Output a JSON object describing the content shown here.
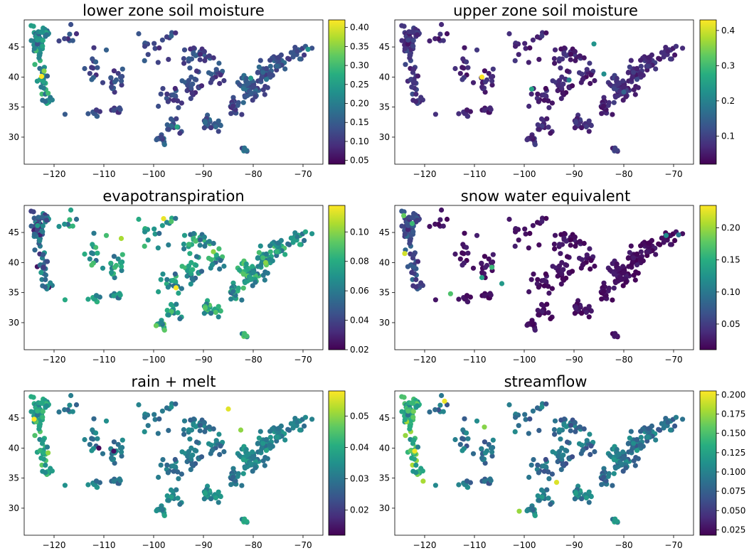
{
  "chart_data": [
    {
      "type": "scatter",
      "title": "lower zone soil moisture",
      "colormap": "viridis",
      "x_ticks": [
        "−120",
        "−110",
        "−100",
        "−90",
        "−80",
        "−70"
      ],
      "y_ticks": [
        "30",
        "35",
        "40",
        "45"
      ],
      "xlim": [
        -126,
        -66
      ],
      "ylim": [
        25.5,
        49.5
      ],
      "colorbar": {
        "range": [
          0.04,
          0.42
        ],
        "ticks": [
          "0.05",
          "0.10",
          "0.15",
          "0.20",
          "0.25",
          "0.30",
          "0.35",
          "0.40"
        ]
      },
      "color_profile": {
        "base": 0.12,
        "spread": 0.04,
        "west_coast_boost": 0.1,
        "south_boost": 0.02,
        "east_boost": 0.03
      },
      "highlights": [
        {
          "x": -122.5,
          "y": 40.1,
          "v": 0.42
        },
        {
          "x": -122.0,
          "y": 41.0,
          "v": 0.35
        },
        {
          "x": -121.2,
          "y": 37.3,
          "v": 0.3
        },
        {
          "x": -95.3,
          "y": 31.7,
          "v": 0.27
        },
        {
          "x": -80.5,
          "y": 39.8,
          "v": 0.24
        },
        {
          "x": -69.0,
          "y": 44.6,
          "v": 0.23
        }
      ]
    },
    {
      "type": "scatter",
      "title": "upper zone soil moisture",
      "colormap": "viridis",
      "x_ticks": [
        "−120",
        "−110",
        "−100",
        "−90",
        "−80",
        "−70"
      ],
      "y_ticks": [
        "30",
        "35",
        "40",
        "45"
      ],
      "xlim": [
        -126,
        -66
      ],
      "ylim": [
        25.5,
        49.5
      ],
      "colorbar": {
        "range": [
          0.02,
          0.43
        ],
        "ticks": [
          "0.1",
          "0.2",
          "0.3",
          "0.4"
        ]
      },
      "color_profile": {
        "base": 0.06,
        "spread": 0.03,
        "west_coast_boost": 0.02,
        "south_boost": 0.01,
        "east_boost": 0.02
      },
      "highlights": [
        {
          "x": -108.5,
          "y": 40.0,
          "v": 0.43
        },
        {
          "x": -98.5,
          "y": 38.0,
          "v": 0.26
        },
        {
          "x": -86.0,
          "y": 45.5,
          "v": 0.23
        },
        {
          "x": -84.0,
          "y": 40.5,
          "v": 0.22
        },
        {
          "x": -91.0,
          "y": 39.5,
          "v": 0.2
        },
        {
          "x": -80.0,
          "y": 37.5,
          "v": 0.15
        }
      ]
    },
    {
      "type": "scatter",
      "title": "evapotranspiration",
      "colormap": "viridis",
      "x_ticks": [
        "−120",
        "−110",
        "−100",
        "−90",
        "−80",
        "−70"
      ],
      "y_ticks": [
        "30",
        "35",
        "40",
        "45"
      ],
      "xlim": [
        -126,
        -66
      ],
      "ylim": [
        25.5,
        49.5
      ],
      "colorbar": {
        "range": [
          0.02,
          0.118
        ],
        "ticks": [
          "0.02",
          "0.04",
          "0.06",
          "0.08",
          "0.10"
        ]
      },
      "color_profile": {
        "base": 0.07,
        "spread": 0.02,
        "west_coast_boost": -0.02,
        "south_boost": 0.005,
        "east_boost": 0.005
      },
      "highlights": [
        {
          "x": -98.0,
          "y": 47.3,
          "v": 0.115
        },
        {
          "x": -95.5,
          "y": 35.8,
          "v": 0.118
        },
        {
          "x": -106.5,
          "y": 44.0,
          "v": 0.105
        },
        {
          "x": -88.0,
          "y": 41.8,
          "v": 0.1
        },
        {
          "x": -77.5,
          "y": 40.0,
          "v": 0.1
        },
        {
          "x": -99.5,
          "y": 29.5,
          "v": 0.095
        }
      ]
    },
    {
      "type": "scatter",
      "title": "snow water equivalent",
      "colormap": "viridis",
      "x_ticks": [
        "−120",
        "−110",
        "−100",
        "−90",
        "−80",
        "−70"
      ],
      "y_ticks": [
        "30",
        "35",
        "40",
        "45"
      ],
      "xlim": [
        -126,
        -66
      ],
      "ylim": [
        25.5,
        49.5
      ],
      "colorbar": {
        "range": [
          0.01,
          0.235
        ],
        "ticks": [
          "0.05",
          "0.10",
          "0.15",
          "0.20"
        ]
      },
      "color_profile": {
        "base": 0.02,
        "spread": 0.01,
        "west_coast_boost": 0.04,
        "south_boost": 0.0,
        "east_boost": 0.0
      },
      "highlights": [
        {
          "x": -124.0,
          "y": 41.5,
          "v": 0.22
        },
        {
          "x": -124.2,
          "y": 47.8,
          "v": 0.18
        },
        {
          "x": -122.5,
          "y": 46.5,
          "v": 0.16
        },
        {
          "x": -114.8,
          "y": 34.8,
          "v": 0.17
        },
        {
          "x": -106.5,
          "y": 39.2,
          "v": 0.16
        },
        {
          "x": -108.5,
          "y": 37.5,
          "v": 0.14
        },
        {
          "x": -104.5,
          "y": 36.5,
          "v": 0.13
        },
        {
          "x": -71.5,
          "y": 44.5,
          "v": 0.12
        },
        {
          "x": -69.0,
          "y": 44.6,
          "v": 0.1
        }
      ]
    },
    {
      "type": "scatter",
      "title": "rain + melt",
      "colormap": "viridis",
      "x_ticks": [
        "−120",
        "−110",
        "−100",
        "−90",
        "−80",
        "−70"
      ],
      "y_ticks": [
        "30",
        "35",
        "40",
        "45"
      ],
      "xlim": [
        -126,
        -66
      ],
      "ylim": [
        25.5,
        49.5
      ],
      "colorbar": {
        "range": [
          0.012,
          0.058
        ],
        "ticks": [
          "0.02",
          "0.03",
          "0.04",
          "0.05"
        ]
      },
      "color_profile": {
        "base": 0.03,
        "spread": 0.005,
        "west_coast_boost": 0.008,
        "south_boost": 0.004,
        "east_boost": 0.004
      },
      "highlights": [
        {
          "x": -124.0,
          "y": 44.8,
          "v": 0.058
        },
        {
          "x": -85.0,
          "y": 46.5,
          "v": 0.056
        },
        {
          "x": -121.2,
          "y": 39.2,
          "v": 0.05
        },
        {
          "x": -82.5,
          "y": 43.0,
          "v": 0.05
        },
        {
          "x": -111.0,
          "y": 40.0,
          "v": 0.013
        },
        {
          "x": -108.0,
          "y": 39.5,
          "v": 0.014
        }
      ]
    },
    {
      "type": "scatter",
      "title": "streamflow",
      "colormap": "viridis",
      "x_ticks": [
        "−120",
        "−110",
        "−100",
        "−90",
        "−80",
        "−70"
      ],
      "y_ticks": [
        "30",
        "35",
        "40",
        "45"
      ],
      "xlim": [
        -126,
        -66
      ],
      "ylim": [
        25.5,
        49.5
      ],
      "colorbar": {
        "range": [
          0.018,
          0.205
        ],
        "ticks": [
          "0.025",
          "0.050",
          "0.075",
          "0.100",
          "0.125",
          "0.150",
          "0.175",
          "0.200"
        ]
      },
      "color_profile": {
        "base": 0.085,
        "spread": 0.025,
        "west_coast_boost": 0.05,
        "south_boost": 0.015,
        "east_boost": 0.01
      },
      "highlights": [
        {
          "x": -122.0,
          "y": 39.5,
          "v": 0.2
        },
        {
          "x": -116.0,
          "y": 47.8,
          "v": 0.2
        },
        {
          "x": -93.5,
          "y": 34.3,
          "v": 0.195
        },
        {
          "x": -101.0,
          "y": 29.5,
          "v": 0.175
        },
        {
          "x": -108.0,
          "y": 43.5,
          "v": 0.17
        },
        {
          "x": -120.3,
          "y": 34.5,
          "v": 0.18
        }
      ]
    }
  ]
}
